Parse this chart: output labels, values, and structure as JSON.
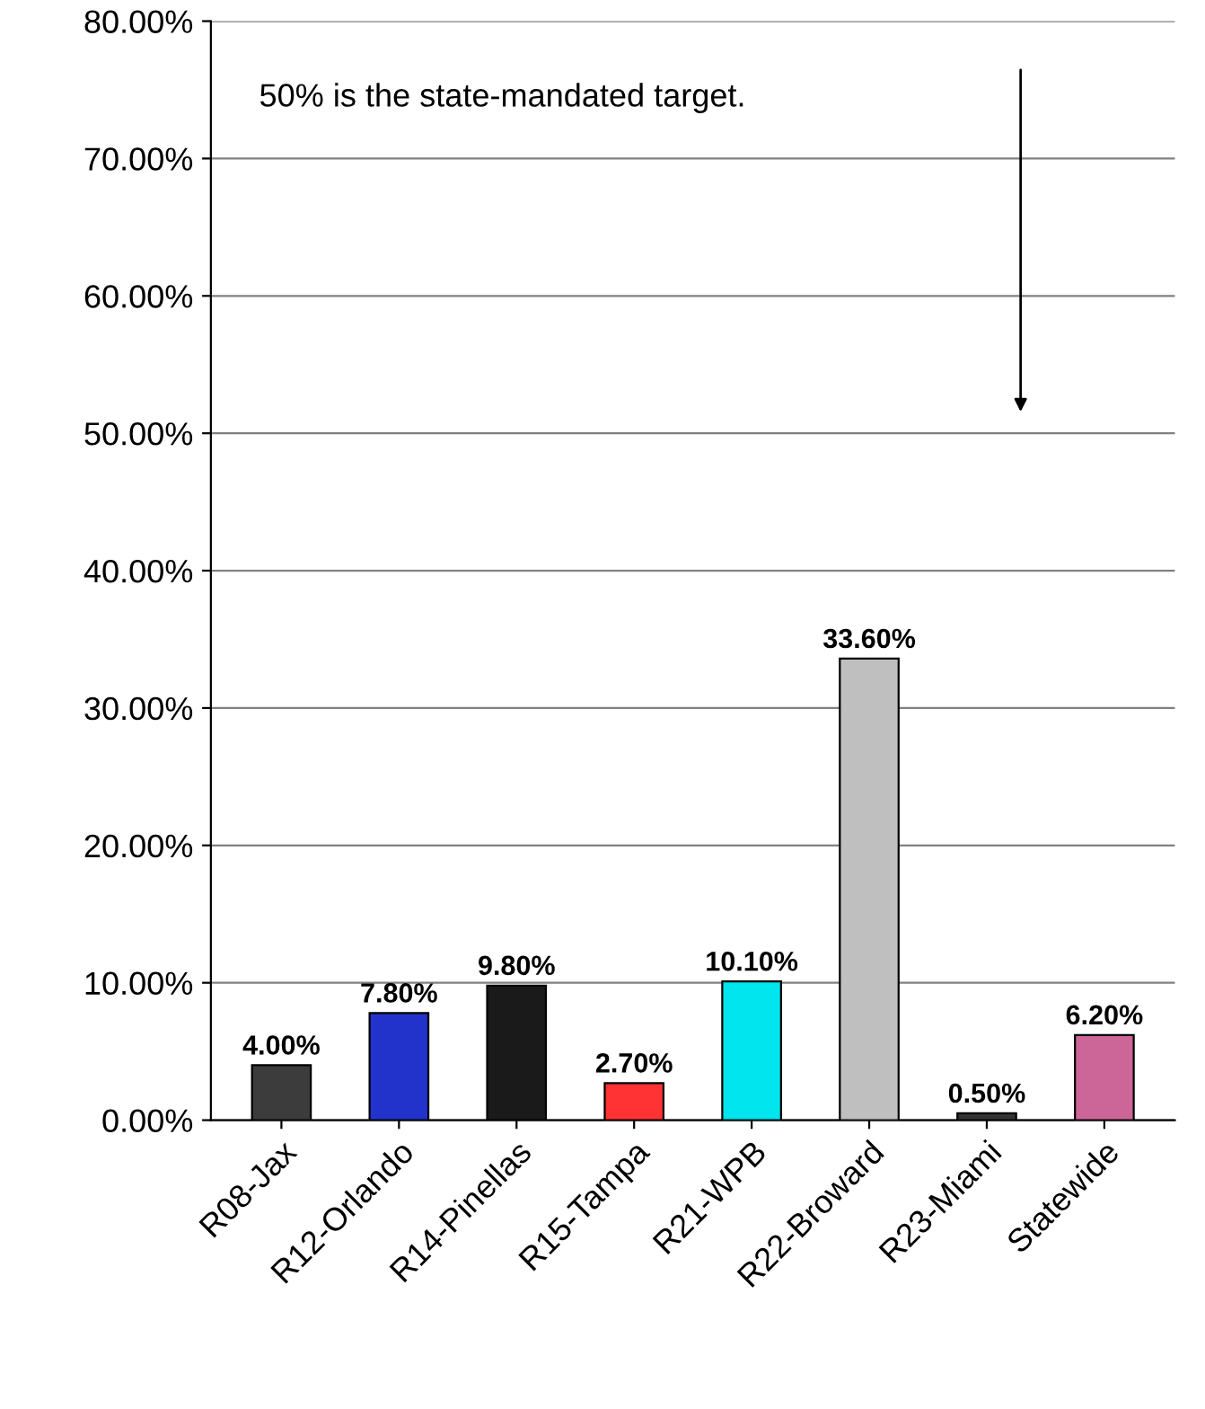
{
  "chart_data": {
    "type": "bar",
    "categories": [
      "R08-Jax",
      "R12-Orlando",
      "R14-Pinellas",
      "R15-Tampa",
      "R21-WPB",
      "R22-Broward",
      "R23-Miami",
      "Statewide"
    ],
    "values": [
      4.0,
      7.8,
      9.8,
      2.7,
      10.1,
      33.6,
      0.5,
      6.2
    ],
    "colors": [
      "#3c3c3c",
      "#2233cc",
      "#1a1a1a",
      "#ff3333",
      "#00e5ee",
      "#bfbfbf",
      "#333333",
      "#cc6699"
    ],
    "value_labels": [
      "4.00%",
      "7.80%",
      "9.80%",
      "2.70%",
      "10.10%",
      "33.60%",
      "0.50%",
      "6.20%"
    ],
    "ylim": [
      0,
      80
    ],
    "yticks": [
      {
        "value": 0,
        "label": "0.00%"
      },
      {
        "value": 10,
        "label": "10.00%"
      },
      {
        "value": 20,
        "label": "20.00%"
      },
      {
        "value": 30,
        "label": "30.00%"
      },
      {
        "value": 40,
        "label": "40.00%"
      },
      {
        "value": 50,
        "label": "50.00%"
      },
      {
        "value": 60,
        "label": "60.00%"
      },
      {
        "value": 70,
        "label": "70.00%"
      },
      {
        "value": 80,
        "label": "80.00%"
      }
    ],
    "grid": "y",
    "legend": false,
    "annotations": [
      "50% is the state-mandated target."
    ]
  }
}
